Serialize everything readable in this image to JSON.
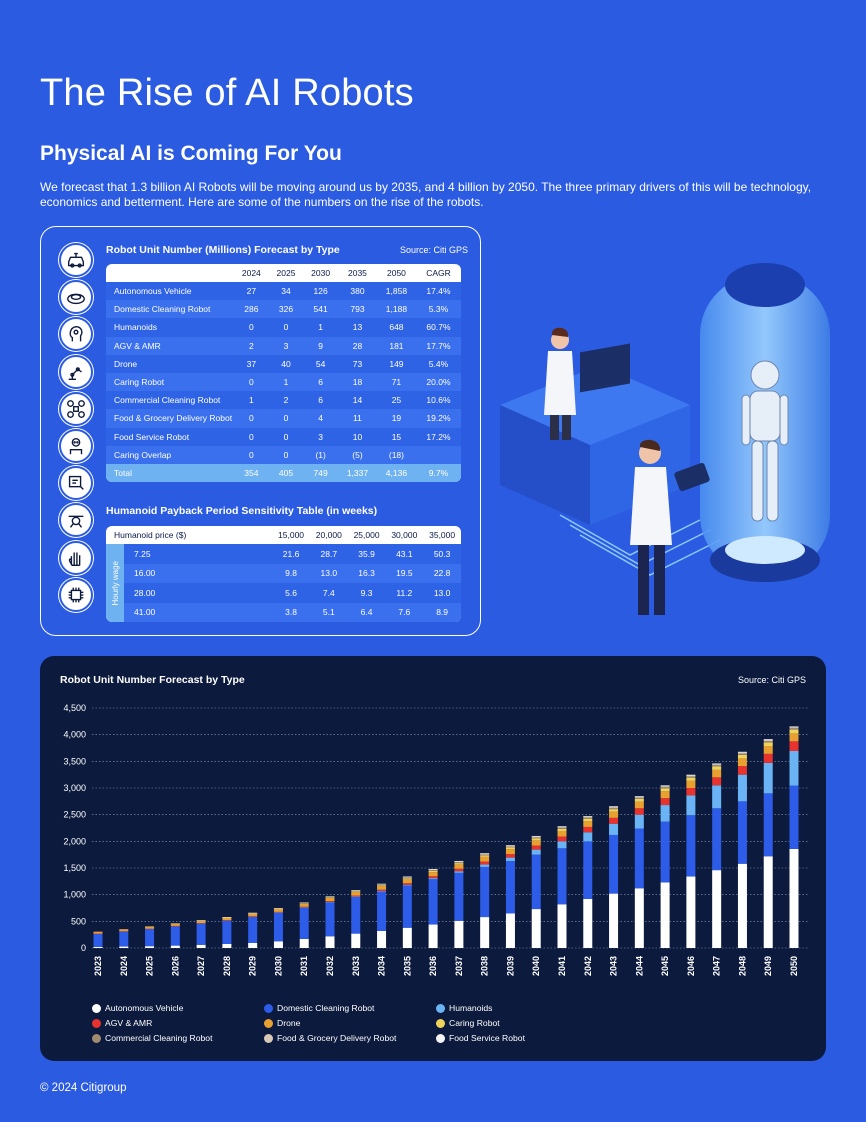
{
  "title": "The Rise of AI Robots",
  "subtitle": "Physical AI is Coming For You",
  "intro": "We forecast that 1.3 billion AI Robots will be moving around us by 2035, and 4 billion by 2050. The three primary drivers of this will be technology, economics and betterment. Here are some of the numbers on the rise of the robots.",
  "icons": [
    "autonomous-vehicle-icon",
    "cleaning-robot-icon",
    "humanoid-head-icon",
    "robotic-arm-icon",
    "drone-icon",
    "caring-robot-icon",
    "delivery-robot-icon",
    "food-service-icon",
    "robot-hand-icon",
    "ai-chip-icon"
  ],
  "forecast_table": {
    "title": "Robot Unit Number (Millions) Forecast by Type",
    "source": "Source: Citi GPS",
    "headers": [
      "",
      "2024",
      "2025",
      "2030",
      "2035",
      "2050",
      "CAGR"
    ],
    "rows": [
      [
        "Autonomous Vehicle",
        "27",
        "34",
        "126",
        "380",
        "1,858",
        "17.4%"
      ],
      [
        "Domestic Cleaning Robot",
        "286",
        "326",
        "541",
        "793",
        "1,188",
        "5.3%"
      ],
      [
        "Humanoids",
        "0",
        "0",
        "1",
        "13",
        "648",
        "60.7%"
      ],
      [
        "AGV & AMR",
        "2",
        "3",
        "9",
        "28",
        "181",
        "17.7%"
      ],
      [
        "Drone",
        "37",
        "40",
        "54",
        "73",
        "149",
        "5.4%"
      ],
      [
        "Caring Robot",
        "0",
        "1",
        "6",
        "18",
        "71",
        "20.0%"
      ],
      [
        "Commercial Cleaning Robot",
        "1",
        "2",
        "6",
        "14",
        "25",
        "10.6%"
      ],
      [
        "Food & Grocery Delivery Robot",
        "0",
        "0",
        "4",
        "11",
        "19",
        "19.2%"
      ],
      [
        "Food Service Robot",
        "0",
        "0",
        "3",
        "10",
        "15",
        "17.2%"
      ],
      [
        "Caring Overlap",
        "0",
        "0",
        "(1)",
        "(5)",
        "(18)",
        ""
      ]
    ],
    "total": [
      "Total",
      "354",
      "405",
      "749",
      "1,337",
      "4,136",
      "9.7%"
    ]
  },
  "payback_table": {
    "title": "Humanoid Payback Period Sensitivity Table (in weeks)",
    "headers": [
      "Humanoid price ($)",
      "15,000",
      "20,000",
      "25,000",
      "30,000",
      "35,000"
    ],
    "side_label": "Hourly wage",
    "rows": [
      [
        "7.25",
        "21.6",
        "28.7",
        "35.9",
        "43.1",
        "50.3"
      ],
      [
        "16.00",
        "9.8",
        "13.0",
        "16.3",
        "19.5",
        "22.8"
      ],
      [
        "28.00",
        "5.6",
        "7.4",
        "9.3",
        "11.2",
        "13.0"
      ],
      [
        "41.00",
        "3.8",
        "5.1",
        "6.4",
        "7.6",
        "8.9"
      ]
    ]
  },
  "chart_data": {
    "type": "bar",
    "stacked": true,
    "title": "Robot Unit Number Forecast by Type",
    "source": "Source: Citi GPS",
    "ylim": [
      0,
      4500
    ],
    "yticks": [
      "0",
      "500",
      "1,000",
      "1,500",
      "2,000",
      "2,500",
      "3,000",
      "3,500",
      "4,000",
      "4,500"
    ],
    "grid": true,
    "legend_position": "bottom-left",
    "categories": [
      "2023",
      "2024",
      "2025",
      "2026",
      "2027",
      "2028",
      "2029",
      "2030",
      "2031",
      "2032",
      "2033",
      "2034",
      "2035",
      "2036",
      "2037",
      "2038",
      "2039",
      "2040",
      "2041",
      "2042",
      "2043",
      "2044",
      "2045",
      "2046",
      "2047",
      "2048",
      "2049",
      "2050"
    ],
    "series": [
      {
        "name": "Autonomous Vehicle",
        "color": "#ffffff",
        "values": [
          20,
          27,
          34,
          45,
          60,
          75,
          95,
          126,
          170,
          220,
          270,
          320,
          380,
          440,
          510,
          580,
          650,
          730,
          820,
          920,
          1020,
          1120,
          1230,
          1340,
          1460,
          1580,
          1720,
          1858
        ]
      },
      {
        "name": "Domestic Cleaning Robot",
        "color": "#2d5ce8",
        "values": [
          250,
          286,
          326,
          365,
          400,
          440,
          490,
          541,
          590,
          640,
          690,
          740,
          793,
          850,
          900,
          940,
          980,
          1020,
          1050,
          1080,
          1100,
          1120,
          1140,
          1150,
          1160,
          1170,
          1180,
          1188
        ]
      },
      {
        "name": "Humanoids",
        "color": "#6ab4f5",
        "values": [
          0,
          0,
          0,
          0,
          0,
          0,
          0,
          1,
          2,
          4,
          6,
          9,
          13,
          20,
          30,
          45,
          65,
          95,
          130,
          170,
          210,
          260,
          310,
          370,
          430,
          500,
          570,
          648
        ]
      },
      {
        "name": "AGV & AMR",
        "color": "#e8322e",
        "values": [
          1,
          2,
          3,
          4,
          5,
          6,
          8,
          9,
          11,
          14,
          18,
          23,
          28,
          35,
          45,
          55,
          65,
          75,
          90,
          100,
          110,
          120,
          130,
          140,
          150,
          160,
          170,
          181
        ]
      },
      {
        "name": "Drone",
        "color": "#e8a030",
        "values": [
          34,
          37,
          40,
          43,
          46,
          49,
          52,
          54,
          57,
          61,
          65,
          69,
          73,
          78,
          83,
          88,
          93,
          98,
          104,
          110,
          116,
          122,
          128,
          134,
          140,
          145,
          147,
          149
        ]
      },
      {
        "name": "Caring Robot",
        "color": "#f0d35a",
        "values": [
          0,
          0,
          1,
          2,
          3,
          4,
          5,
          6,
          8,
          10,
          12,
          15,
          18,
          21,
          24,
          28,
          32,
          36,
          40,
          44,
          48,
          52,
          56,
          60,
          63,
          66,
          69,
          71
        ]
      },
      {
        "name": "Commercial Cleaning Robot",
        "color": "#a08a70",
        "values": [
          1,
          1,
          2,
          2,
          3,
          4,
          5,
          6,
          7,
          9,
          10,
          12,
          14,
          15,
          16,
          17,
          18,
          19,
          20,
          21,
          22,
          22,
          23,
          23,
          24,
          24,
          25,
          25
        ]
      },
      {
        "name": "Food & Grocery Delivery Robot",
        "color": "#d8c8b8",
        "values": [
          0,
          0,
          0,
          1,
          1,
          2,
          3,
          4,
          5,
          6,
          8,
          9,
          11,
          12,
          13,
          14,
          14,
          15,
          16,
          16,
          17,
          17,
          18,
          18,
          18,
          19,
          19,
          19
        ]
      },
      {
        "name": "Food Service Robot",
        "color": "#f4f4f4",
        "values": [
          0,
          0,
          0,
          0,
          1,
          1,
          2,
          3,
          4,
          5,
          6,
          8,
          10,
          11,
          11,
          12,
          12,
          13,
          13,
          13,
          14,
          14,
          14,
          14,
          15,
          15,
          15,
          15
        ]
      }
    ]
  },
  "footer": "© 2024 Citigroup"
}
